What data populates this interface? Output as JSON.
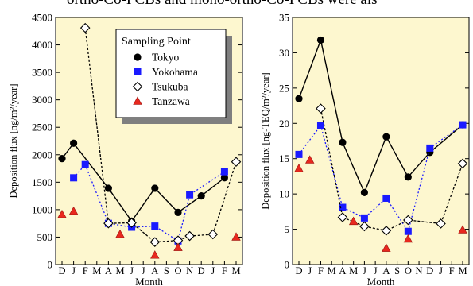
{
  "page_header_text": "ortho-Co-PCBs and mono-ortho-Co-PCBs were als",
  "legend": {
    "title": "Sampling Point",
    "entries": [
      {
        "name": "Tokyo",
        "marker": "filled-circle",
        "color": "#000000"
      },
      {
        "name": "Yokohama",
        "marker": "filled-square",
        "color": "#1a1aff"
      },
      {
        "name": "Tsukuba",
        "marker": "open-diamond",
        "color": "#000000"
      },
      {
        "name": "Tanzawa",
        "marker": "filled-triangle",
        "color": "#e8281e"
      }
    ]
  },
  "colors": {
    "plot_background": "#fdf7cf",
    "tokyo": "#000000",
    "yokohama": "#1a1aff",
    "tsukuba": "#000000",
    "tanzawa": "#e8281e",
    "legend_shadow": "#7f7f7f"
  },
  "chart_data": [
    {
      "type": "line",
      "xlabel": "Month",
      "ylabel": "Deposition flux [ng/m²/year]",
      "x_tick_labels": [
        "D",
        "J",
        "F",
        "M",
        "A",
        "M",
        "J",
        "J",
        "A",
        "S",
        "O",
        "N",
        "D",
        "J",
        "F",
        "M"
      ],
      "ylim": [
        0,
        4500
      ],
      "y_ticks": [
        0,
        500,
        1000,
        1500,
        2000,
        2500,
        3000,
        3500,
        4000,
        4500
      ],
      "series": [
        {
          "name": "Tokyo",
          "style": "solid",
          "x": [
            0,
            1,
            4,
            6,
            8,
            10,
            12,
            14
          ],
          "y": [
            1930,
            2210,
            1390,
            790,
            1390,
            950,
            1250,
            1580
          ]
        },
        {
          "name": "Yokohama",
          "style": "dotted",
          "x": [
            1,
            2,
            4,
            6,
            8,
            10,
            11,
            14
          ],
          "y": [
            1580,
            1820,
            750,
            680,
            700,
            430,
            1270,
            1690
          ]
        },
        {
          "name": "Tsukuba",
          "style": "dashed",
          "x": [
            2,
            4,
            6,
            8,
            10,
            11,
            13,
            15
          ],
          "y": [
            4310,
            750,
            760,
            410,
            440,
            520,
            550,
            1870
          ]
        },
        {
          "name": "Tanzawa",
          "style": "none",
          "x": [
            0,
            1,
            5,
            8,
            10,
            15
          ],
          "y": [
            910,
            970,
            550,
            170,
            310,
            500
          ]
        }
      ]
    },
    {
      "type": "line",
      "xlabel": "Month",
      "ylabel": "Deposition flux [ng-TEQ/m²/year]",
      "x_tick_labels": [
        "D",
        "J",
        "F",
        "M",
        "A",
        "M",
        "J",
        "J",
        "A",
        "S",
        "O",
        "N",
        "D",
        "J",
        "F",
        "M"
      ],
      "ylim": [
        0,
        35
      ],
      "y_ticks": [
        0,
        5,
        10,
        15,
        20,
        25,
        30,
        35
      ],
      "series": [
        {
          "name": "Tokyo",
          "style": "solid",
          "x": [
            0,
            2,
            4,
            6,
            8,
            10,
            12,
            15
          ],
          "y": [
            23.5,
            31.8,
            17.3,
            10.2,
            18.1,
            12.4,
            15.9,
            19.8
          ]
        },
        {
          "name": "Yokohama",
          "style": "dotted",
          "x": [
            0,
            2,
            4,
            6,
            8,
            10,
            12,
            15
          ],
          "y": [
            15.6,
            19.7,
            8.1,
            6.6,
            9.4,
            4.7,
            16.5,
            19.8
          ]
        },
        {
          "name": "Tsukuba",
          "style": "dashed",
          "x": [
            2,
            4,
            6,
            8,
            10,
            13,
            15
          ],
          "y": [
            22.1,
            6.7,
            5.4,
            4.8,
            6.3,
            5.8,
            14.3
          ]
        },
        {
          "name": "Tanzawa",
          "style": "none",
          "x": [
            0,
            1,
            5,
            8,
            10,
            15
          ],
          "y": [
            13.6,
            14.8,
            6.1,
            2.3,
            3.6,
            4.9
          ]
        }
      ]
    }
  ]
}
